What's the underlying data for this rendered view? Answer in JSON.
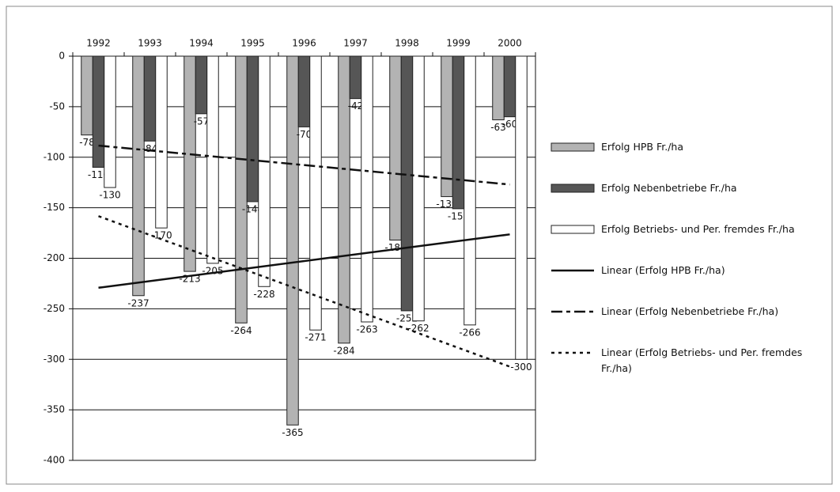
{
  "chart_data": {
    "type": "bar",
    "categories": [
      "1992",
      "1993",
      "1994",
      "1995",
      "1996",
      "1997",
      "1998",
      "1999",
      "2000"
    ],
    "series": [
      {
        "name": "Erfolg HPB Fr./ha",
        "color": "#b3b3b3",
        "values": [
          -78,
          -237,
          -213,
          -264,
          -365,
          -284,
          -182,
          -139,
          -63
        ],
        "trend_name": "Linear (Erfolg HPB Fr./ha)",
        "trend_dash": "none"
      },
      {
        "name": "Erfolg Nebenbetriebe Fr./ha",
        "color": "#565656",
        "values": [
          -110,
          -84,
          -57,
          -144,
          -70,
          -42,
          -252,
          -151,
          -60
        ],
        "trend_name": "Linear (Erfolg Nebenbetriebe Fr./ha)",
        "trend_dash": "14,5,5,5"
      },
      {
        "name": "Erfolg Betriebs- und Per. fremdes Fr./ha",
        "color": "#ffffff",
        "values": [
          -130,
          -170,
          -205,
          -228,
          -271,
          -263,
          -262,
          -266,
          -300
        ],
        "trend_name": "Linear (Erfolg Betriebs- und Per. fremdes Fr./ha)",
        "trend_dash": "4,5"
      }
    ],
    "ylim": [
      -400,
      0
    ],
    "yticks": [
      0,
      -50,
      -100,
      -150,
      -200,
      -250,
      -300,
      -350,
      -400
    ],
    "grid": true,
    "legend": "right"
  }
}
